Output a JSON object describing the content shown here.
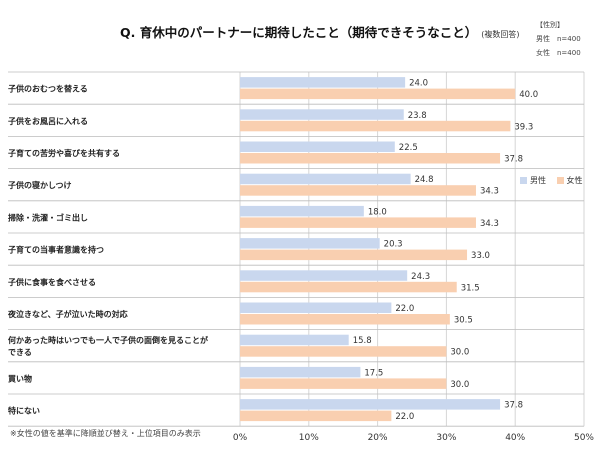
{
  "title": "Q. 育休中のパートナーに期待したこと（期待できそうなこと）",
  "subtitle": "(複数回答)",
  "meta": {
    "header": "【性別】",
    "male_line": "男性　n=400",
    "female_line": "女性　n=400"
  },
  "footnote": "※女性の値を基準に降順並び替え・上位項目のみ表示",
  "colors": {
    "male": "#c9d7ee",
    "female": "#f9cfb0",
    "grid": "#d6d6d6",
    "separator": "#bcbcbc"
  },
  "chart_data": {
    "type": "bar",
    "orientation": "horizontal",
    "title": "Q. 育休中のパートナーに期待したこと（期待できそうなこと）(複数回答)",
    "xlabel": "",
    "ylabel": "",
    "xlim": [
      0,
      50
    ],
    "ticks": [
      0,
      10,
      20,
      30,
      40,
      50
    ],
    "tick_labels": [
      "0%",
      "10%",
      "20%",
      "30%",
      "40%",
      "50%"
    ],
    "grid": true,
    "legend": "right",
    "categories": [
      [
        "子供のおむつを替える"
      ],
      [
        "子供をお風呂に入れる"
      ],
      [
        "子育ての苦労や喜びを共有する"
      ],
      [
        "子供の寝かしつけ"
      ],
      [
        "掃除・洗濯・ゴミ出し"
      ],
      [
        "子育ての当事者意識を持つ"
      ],
      [
        "子供に食事を食べさせる"
      ],
      [
        "夜泣きなど、子が泣いた時の対応"
      ],
      [
        "何かあった時はいつでも一人で子供の面倒を見ることが",
        "できる"
      ],
      [
        "買い物"
      ],
      [
        "特にない"
      ]
    ],
    "series": [
      {
        "name": "男性",
        "values": [
          24.0,
          23.8,
          22.5,
          24.8,
          18.0,
          20.3,
          24.3,
          22.0,
          15.8,
          17.5,
          37.8
        ]
      },
      {
        "name": "女性",
        "values": [
          40.0,
          39.3,
          37.8,
          34.3,
          34.3,
          33.0,
          31.5,
          30.5,
          30.0,
          30.0,
          22.0
        ]
      }
    ]
  }
}
